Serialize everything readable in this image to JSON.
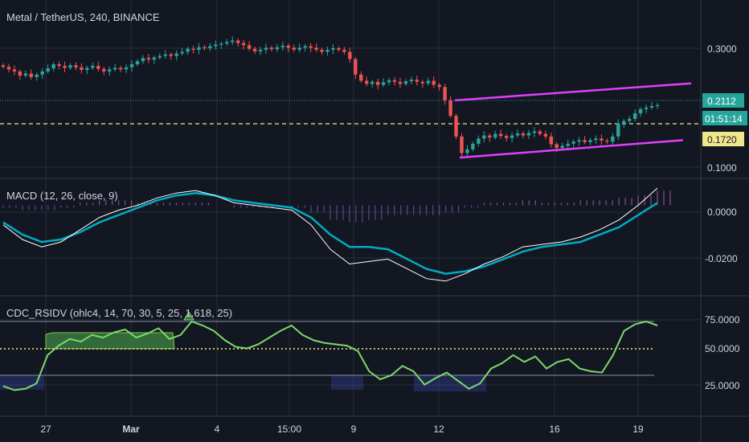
{
  "header": {
    "symbol_title": "Metal / TetherUS, 240, BINANCE",
    "macd_title": "MACD (12, 26, close, 9)",
    "rsi_title": "CDC_RSIDV (ohlc4, 14, 70, 30, 5, 25, 1.618, 25)"
  },
  "colors": {
    "background": "#131722",
    "grid": "#2a2e39",
    "up": "#26a69a",
    "down": "#ef5350",
    "channel": "#e040fb",
    "macd_line": "#ffffff",
    "signal_line": "#00acc1",
    "rsi_line": "#7cd96a",
    "midline": "#f0f080",
    "last_price_bg": "#26a69a",
    "level_bg": "#f0e68c",
    "countdown_bg": "#26a69a"
  },
  "price_axis": {
    "ticks": [
      "0.3000",
      "0.1000"
    ],
    "last_price": "0.2112",
    "countdown": "01:51:14",
    "level": "0.1720"
  },
  "macd_axis": {
    "ticks": [
      "0.0000",
      "-0.0200"
    ]
  },
  "rsi_axis": {
    "ticks": [
      "75.0000",
      "50.0000",
      "25.0000"
    ]
  },
  "time_axis": {
    "labels": [
      "27",
      "Mar",
      "4",
      "15:00",
      "9",
      "12",
      "16",
      "19"
    ]
  },
  "chart_data": [
    {
      "type": "candlestick",
      "title": "Metal / TetherUS, 240, BINANCE",
      "y_ticks": [
        0.3,
        0.1
      ],
      "ylim": [
        0.075,
        0.36
      ],
      "close": [
        0.285,
        0.28,
        0.276,
        0.268,
        0.272,
        0.265,
        0.27,
        0.276,
        0.282,
        0.29,
        0.287,
        0.283,
        0.288,
        0.284,
        0.279,
        0.283,
        0.287,
        0.281,
        0.276,
        0.28,
        0.283,
        0.28,
        0.284,
        0.29,
        0.296,
        0.302,
        0.299,
        0.303,
        0.306,
        0.309,
        0.306,
        0.311,
        0.314,
        0.32,
        0.318,
        0.323,
        0.321,
        0.325,
        0.328,
        0.33,
        0.333,
        0.336,
        0.331,
        0.327,
        0.32,
        0.315,
        0.318,
        0.322,
        0.319,
        0.323,
        0.326,
        0.322,
        0.318,
        0.322,
        0.325,
        0.322,
        0.318,
        0.314,
        0.318,
        0.321,
        0.318,
        0.314,
        0.3,
        0.27,
        0.258,
        0.252,
        0.256,
        0.25,
        0.255,
        0.259,
        0.256,
        0.252,
        0.257,
        0.26,
        0.256,
        0.253,
        0.258,
        0.25,
        0.246,
        0.22,
        0.19,
        0.15,
        0.118,
        0.125,
        0.136,
        0.146,
        0.152,
        0.148,
        0.155,
        0.151,
        0.147,
        0.152,
        0.156,
        0.152,
        0.157,
        0.16,
        0.155,
        0.15,
        0.135,
        0.128,
        0.132,
        0.136,
        0.14,
        0.143,
        0.139,
        0.143,
        0.146,
        0.142,
        0.14,
        0.15,
        0.175,
        0.18,
        0.184,
        0.195,
        0.203,
        0.206,
        0.209,
        0.211
      ],
      "channel_upper": [
        [
          0.162,
          0.22
        ],
        [
          0.258,
          0.253
        ]
      ],
      "channel_lower": [
        [
          0.106,
          0.109
        ],
        [
          0.236,
          0.143
        ]
      ],
      "horizontal_levels": [
        0.2112,
        0.172
      ]
    },
    {
      "type": "line",
      "title": "MACD (12, 26, close, 9)",
      "y_ticks": [
        0.0,
        -0.02
      ],
      "ylim": [
        -0.036,
        0.009
      ],
      "series": [
        {
          "name": "MACD",
          "values": [
            -0.008,
            -0.014,
            -0.017,
            -0.015,
            -0.01,
            -0.005,
            -0.002,
            0.0,
            0.003,
            0.005,
            0.006,
            0.004,
            0.001,
            0.0,
            -0.001,
            -0.002,
            -0.008,
            -0.018,
            -0.024,
            -0.023,
            -0.022,
            -0.026,
            -0.03,
            -0.031,
            -0.028,
            -0.024,
            -0.021,
            -0.017,
            -0.016,
            -0.015,
            -0.013,
            -0.01,
            -0.006,
            0.0,
            0.007
          ]
        },
        {
          "name": "Signal",
          "values": [
            -0.007,
            -0.012,
            -0.015,
            -0.014,
            -0.011,
            -0.007,
            -0.004,
            -0.001,
            0.002,
            0.004,
            0.005,
            0.004,
            0.002,
            0.001,
            0.0,
            -0.001,
            -0.005,
            -0.012,
            -0.017,
            -0.017,
            -0.018,
            -0.022,
            -0.026,
            -0.028,
            -0.027,
            -0.025,
            -0.022,
            -0.019,
            -0.017,
            -0.016,
            -0.015,
            -0.012,
            -0.009,
            -0.004,
            0.001
          ]
        },
        {
          "name": "Histogram",
          "values": [
            -0.001,
            -0.002,
            -0.002,
            -0.001,
            0.001,
            0.002,
            0.002,
            0.001,
            0.001,
            0.001,
            0.001,
            0.0,
            -0.001,
            -0.001,
            -0.001,
            -0.001,
            -0.003,
            -0.006,
            -0.007,
            -0.006,
            -0.004,
            -0.004,
            -0.004,
            -0.003,
            -0.001,
            0.001,
            0.001,
            0.002,
            0.001,
            0.001,
            0.002,
            0.002,
            0.003,
            0.004,
            0.006
          ]
        }
      ]
    },
    {
      "type": "line",
      "title": "CDC_RSIDV (ohlc4, 14, 70, 30, 5, 25, 1.618, 25)",
      "y_ticks": [
        75,
        50,
        25
      ],
      "ylim": [
        15,
        80
      ],
      "levels": [
        70,
        50,
        30
      ],
      "series": [
        {
          "name": "RSI",
          "values": [
            22,
            19,
            20,
            24,
            45,
            52,
            57,
            55,
            60,
            58,
            62,
            64,
            58,
            61,
            65,
            57,
            60,
            70,
            67,
            63,
            56,
            51,
            50,
            53,
            58,
            63,
            67,
            60,
            56,
            54,
            53,
            52,
            48,
            33,
            27,
            30,
            37,
            33,
            23,
            28,
            32,
            26,
            20,
            24,
            35,
            39,
            45,
            40,
            44,
            35,
            40,
            42,
            35,
            33,
            32,
            45,
            63,
            68,
            70,
            67
          ]
        }
      ]
    }
  ]
}
